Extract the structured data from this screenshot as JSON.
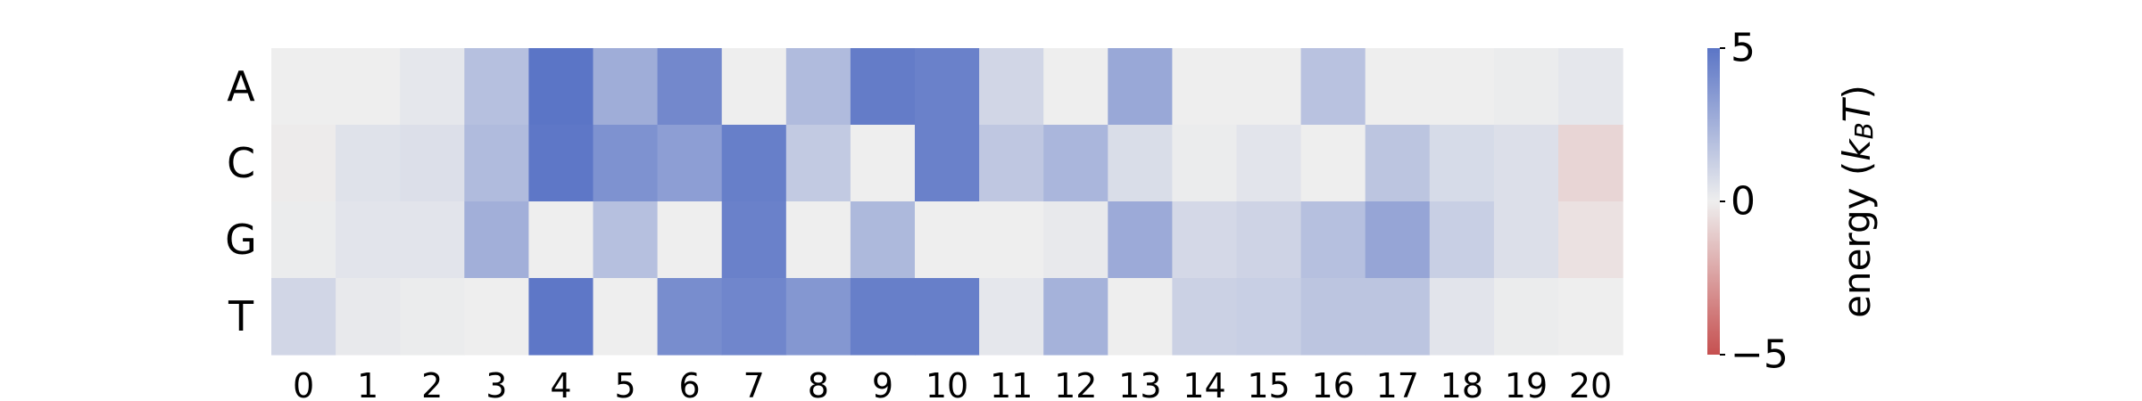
{
  "chart_data": {
    "type": "heatmap",
    "title": "",
    "xlabel": "",
    "ylabel": "",
    "x_categories": [
      "0",
      "1",
      "2",
      "3",
      "4",
      "5",
      "6",
      "7",
      "8",
      "9",
      "10",
      "11",
      "12",
      "13",
      "14",
      "15",
      "16",
      "17",
      "18",
      "19",
      "20"
    ],
    "y_categories": [
      "A",
      "C",
      "G",
      "T"
    ],
    "values": [
      [
        0.0,
        0.0,
        0.3,
        1.9,
        5.0,
        2.7,
        4.2,
        0.0,
        2.1,
        4.7,
        4.5,
        1.0,
        0.0,
        2.9,
        0.0,
        0.0,
        1.8,
        0.0,
        0.0,
        0.1,
        0.3
      ],
      [
        -0.1,
        0.5,
        0.6,
        2.1,
        4.9,
        3.8,
        3.3,
        4.6,
        1.5,
        0.0,
        4.5,
        1.6,
        2.3,
        0.7,
        0.1,
        0.4,
        0.0,
        1.7,
        0.8,
        0.6,
        -0.8
      ],
      [
        0.1,
        0.4,
        0.4,
        2.6,
        0.0,
        1.9,
        0.0,
        4.5,
        0.0,
        2.2,
        0.0,
        0.0,
        0.2,
        2.8,
        0.9,
        1.1,
        1.9,
        3.0,
        1.3,
        0.6,
        -0.4
      ],
      [
        1.0,
        0.2,
        0.1,
        0.0,
        4.9,
        0.0,
        4.0,
        4.3,
        3.6,
        4.6,
        4.6,
        0.3,
        2.5,
        0.0,
        1.2,
        1.3,
        1.7,
        1.7,
        0.4,
        0.1,
        0.0
      ]
    ],
    "colorbar": {
      "min": -5,
      "max": 5,
      "ticks": [
        "5",
        "0",
        "−5"
      ],
      "label": "energy (",
      "label_math": "k",
      "label_sub": "B",
      "label_math2": "T",
      "label_end": ")"
    },
    "colors": {
      "positive": "#5b75c6",
      "neutral": "#eeeeee",
      "negative": "#c65050"
    }
  }
}
